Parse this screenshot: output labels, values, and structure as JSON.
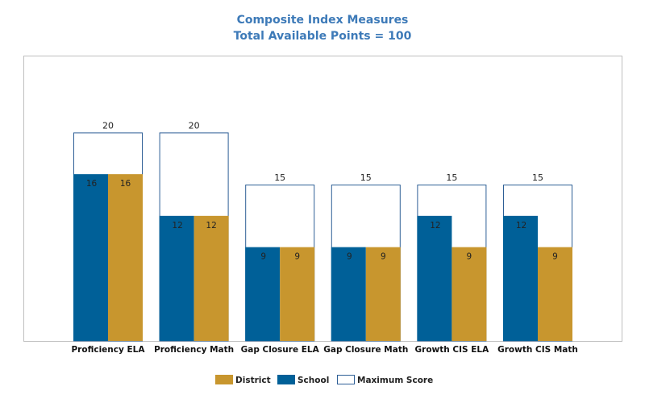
{
  "chart_data": {
    "type": "bar",
    "title": "Composite Index Measures",
    "subtitle": "Total Available Points = 100",
    "categories": [
      "Proficiency ELA",
      "Proficiency Math",
      "Gap Closure ELA",
      "Gap Closure Math",
      "Growth CIS ELA",
      "Growth CIS Math"
    ],
    "series": [
      {
        "name": "School",
        "values": [
          16,
          12,
          9,
          9,
          12,
          12
        ],
        "color": "#006098"
      },
      {
        "name": "District",
        "values": [
          16,
          12,
          9,
          9,
          9,
          9
        ],
        "color": "#c8962e"
      },
      {
        "name": "Maximum Score",
        "values": [
          20,
          20,
          15,
          15,
          15,
          15
        ],
        "color": "#ffffff",
        "outline": "#2e5f96"
      }
    ],
    "legend_order": [
      "District",
      "School",
      "Maximum Score"
    ],
    "ylim": [
      0,
      27.3
    ],
    "grid": false,
    "legend_position": "bottom-center"
  }
}
